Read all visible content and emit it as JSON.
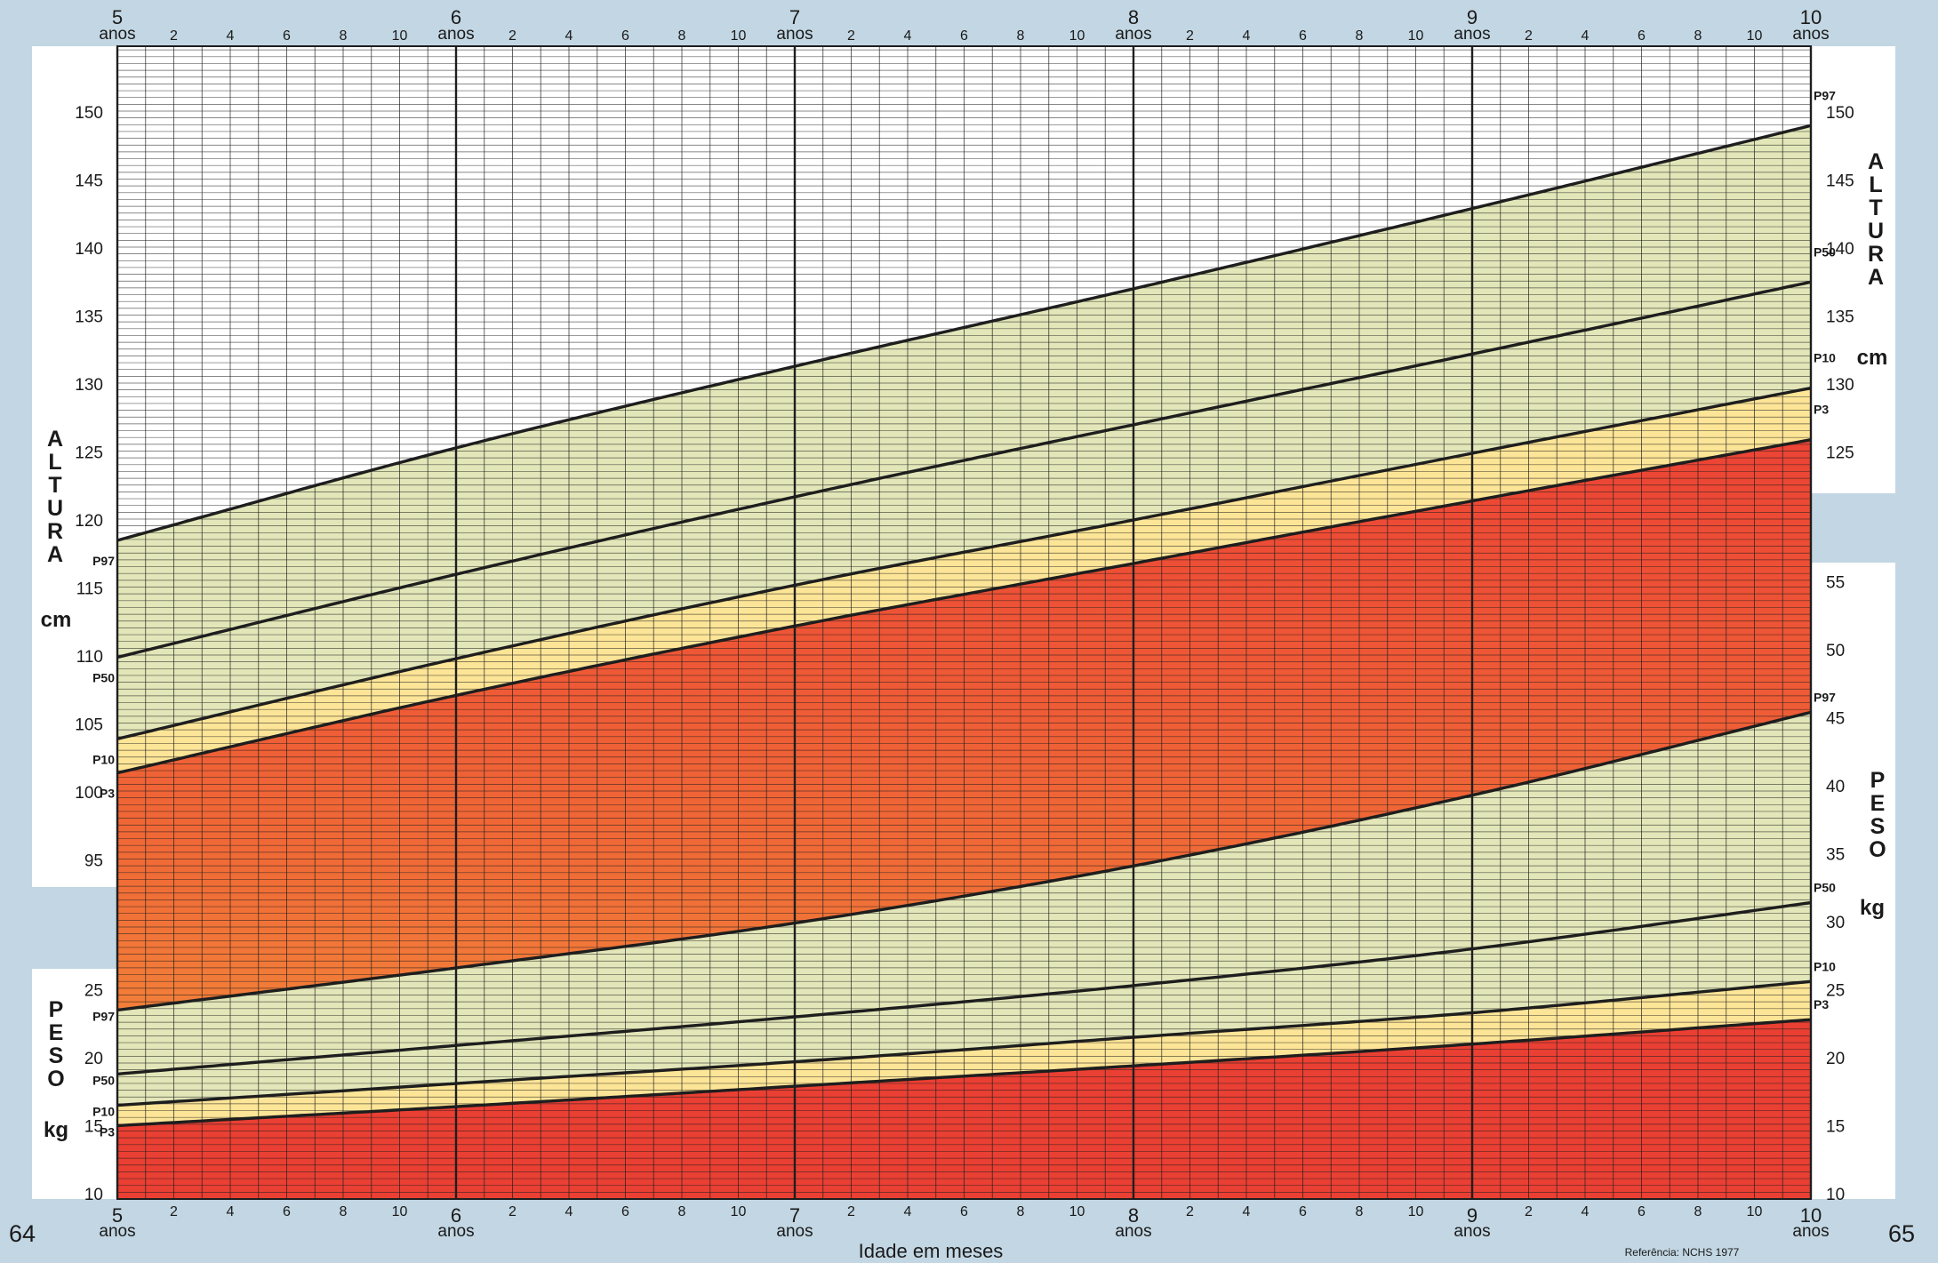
{
  "page": {
    "left_page_number": "64",
    "right_page_number": "65",
    "x_axis_title": "Idade em meses",
    "reference": "Referência: NCHS 1977",
    "year_unit": "anos"
  },
  "colors": {
    "background": "#c2d6e3",
    "panel": "#ffffff",
    "band_green": "#e2e6b8",
    "band_yellow": "#fde597",
    "band_red_top": "#ec4335",
    "band_red_bottom": "#f5983c",
    "grid": "#1e1e1e",
    "curve": "#1e1e1e"
  },
  "chart_data": {
    "type": "line",
    "x_unit": "age in years",
    "x_range": [
      5,
      10
    ],
    "x_year_labels": [
      "5",
      "6",
      "7",
      "8",
      "9",
      "10"
    ],
    "x_month_labels": [
      "2",
      "4",
      "6",
      "8",
      "10"
    ],
    "grid": true,
    "panels": [
      {
        "name": "height",
        "axis_title_letters": [
          "A",
          "L",
          "T",
          "U",
          "R",
          "A"
        ],
        "unit": "cm",
        "y_ticks": [
          95,
          100,
          105,
          110,
          115,
          120,
          125,
          130,
          135,
          140,
          145,
          150
        ],
        "series": [
          {
            "name": "P97",
            "x": [
              5,
              6,
              7,
              8,
              9,
              10
            ],
            "y": [
              118.5,
              125.3,
              131.3,
              137.0,
              142.9,
              149.0
            ]
          },
          {
            "name": "P50",
            "x": [
              5,
              6,
              7,
              8,
              9,
              10
            ],
            "y": [
              109.9,
              116.0,
              121.7,
              127.0,
              132.2,
              137.5
            ]
          },
          {
            "name": "P10",
            "x": [
              5,
              6,
              7,
              8,
              9,
              10
            ],
            "y": [
              103.9,
              109.8,
              115.2,
              120.0,
              124.9,
              129.7
            ]
          },
          {
            "name": "P3",
            "x": [
              5,
              6,
              7,
              8,
              9,
              10
            ],
            "y": [
              101.4,
              107.1,
              112.2,
              116.8,
              121.4,
              125.9
            ]
          }
        ]
      },
      {
        "name": "weight",
        "axis_title_letters": [
          "P",
          "E",
          "S",
          "O"
        ],
        "unit": "kg",
        "y_ticks": [
          10,
          15,
          20,
          25,
          30,
          35,
          40,
          45,
          50,
          55
        ],
        "series": [
          {
            "name": "P97",
            "x": [
              5,
              6,
              7,
              8,
              9,
              10
            ],
            "y": [
              23.5,
              26.6,
              29.9,
              34.1,
              39.3,
              45.4
            ]
          },
          {
            "name": "P50",
            "x": [
              5,
              6,
              7,
              8,
              9,
              10
            ],
            "y": [
              18.8,
              20.9,
              23.0,
              25.3,
              28.0,
              31.4
            ]
          },
          {
            "name": "P10",
            "x": [
              5,
              6,
              7,
              8,
              9,
              10
            ],
            "y": [
              16.5,
              18.1,
              19.7,
              21.5,
              23.3,
              25.6
            ]
          },
          {
            "name": "P3",
            "x": [
              5,
              6,
              7,
              8,
              9,
              10
            ],
            "y": [
              15.0,
              16.4,
              17.9,
              19.4,
              21.0,
              22.8
            ]
          }
        ]
      }
    ]
  }
}
